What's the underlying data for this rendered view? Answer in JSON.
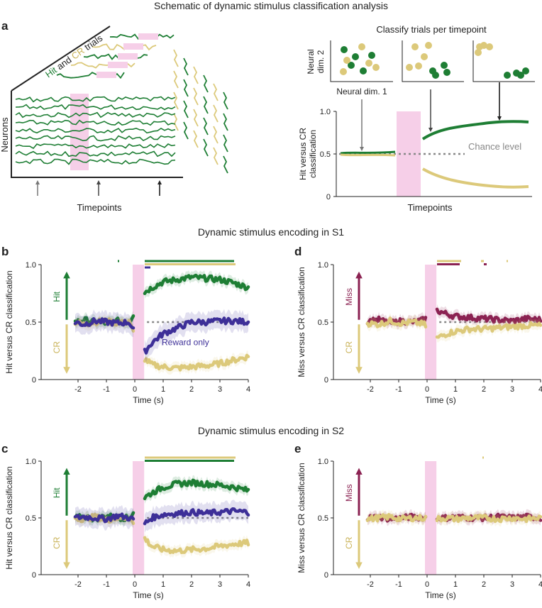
{
  "colors": {
    "hit": "#1e7e34",
    "cr": "#dcc97a",
    "miss": "#8b2252",
    "reward": "#3d2f98",
    "stim": "#f6cfe8",
    "chance": "#888888",
    "axis": "#222222"
  },
  "section_titles": {
    "schematic": "Schematic of dynamic stimulus classification analysis",
    "s1": "Dynamic stimulus encoding in S1",
    "s2": "Dynamic stimulus encoding in S2"
  },
  "panel_letters": {
    "a": "a",
    "b": "b",
    "c": "c",
    "d": "d",
    "e": "e"
  },
  "schematic": {
    "trials_label_hit": "Hit",
    "trials_label_and": " and ",
    "trials_label_cr": "CR",
    "trials_label_suffix": " trials",
    "neurons_label": "Neurons",
    "timepoints_label": "Timepoints",
    "classify_title": "Classify trials per timepoint",
    "neural_dim2_line1": "Neural",
    "neural_dim2_line2": "dim. 2",
    "neural_dim1": "Neural dim. 1",
    "ylabel_line1": "Hit versus CR",
    "ylabel_line2": "classification",
    "xlabel": "Timepoints",
    "chance_label": "Chance level",
    "yticks": [
      "0",
      "0.5",
      "1.0"
    ]
  },
  "chart_data": [
    {
      "panel": "b",
      "type": "line",
      "title": "Dynamic stimulus encoding in S1",
      "xlabel": "Time (s)",
      "ylabel": "Hit versus CR classification",
      "xlim": [
        -2.9,
        4
      ],
      "ylim": [
        0,
        1
      ],
      "xticks": [
        "-2",
        "-1",
        "0",
        "1",
        "2",
        "3",
        "4"
      ],
      "yticks": [
        "0",
        "0.5",
        "1.0"
      ],
      "stim_window": [
        0,
        0.33
      ],
      "chance": 0.5,
      "arrow_up_label": "Hit",
      "arrow_down_label": "CR",
      "annotation": "Reward only",
      "series": [
        {
          "name": "Hit",
          "x": [
            -2.1,
            -1.8,
            -1.4,
            -1,
            -0.6,
            -0.2,
            0.35,
            0.6,
            1,
            1.5,
            2,
            2.5,
            3,
            3.5,
            4
          ],
          "values": [
            0.5,
            0.52,
            0.5,
            0.49,
            0.51,
            0.5,
            0.76,
            0.8,
            0.85,
            0.87,
            0.89,
            0.88,
            0.87,
            0.84,
            0.8
          ]
        },
        {
          "name": "CR",
          "x": [
            -2.1,
            -1.8,
            -1.4,
            -1,
            -0.6,
            -0.2,
            0.35,
            0.6,
            1,
            1.5,
            2,
            2.5,
            3,
            3.5,
            4
          ],
          "values": [
            0.5,
            0.48,
            0.5,
            0.51,
            0.49,
            0.5,
            0.18,
            0.13,
            0.11,
            0.1,
            0.11,
            0.12,
            0.14,
            0.17,
            0.2
          ]
        },
        {
          "name": "Reward only",
          "x": [
            -2.1,
            -1.8,
            -1.4,
            -1,
            -0.6,
            -0.2,
            0.35,
            0.6,
            1,
            1.5,
            2,
            2.5,
            3,
            3.5,
            4
          ],
          "values": [
            0.5,
            0.48,
            0.51,
            0.5,
            0.49,
            0.5,
            0.24,
            0.32,
            0.4,
            0.45,
            0.5,
            0.5,
            0.51,
            0.51,
            0.5
          ]
        }
      ],
      "sig_bars": [
        {
          "series": "Hit",
          "x0": 0.35,
          "x1": 3.5
        },
        {
          "series": "CR",
          "x0": 0.35,
          "x1": 3.55
        },
        {
          "series": "Reward only",
          "x0": 0.35,
          "x1": 0.55
        },
        {
          "series": "Hit",
          "x0": -0.6,
          "x1": -0.55
        }
      ]
    },
    {
      "panel": "d",
      "type": "line",
      "xlabel": "Time (s)",
      "ylabel": "Miss versus CR classification",
      "xlim": [
        -2.9,
        4
      ],
      "ylim": [
        0,
        1
      ],
      "xticks": [
        "-2",
        "-1",
        "0",
        "1",
        "2",
        "3",
        "4"
      ],
      "yticks": [
        "0",
        "0.5",
        "1.0"
      ],
      "stim_window": [
        0,
        0.33
      ],
      "chance": 0.5,
      "arrow_up_label": "Miss",
      "arrow_down_label": "CR",
      "series": [
        {
          "name": "Miss",
          "x": [
            -2.1,
            -1.7,
            -1.3,
            -0.9,
            -0.5,
            -0.1,
            0.35,
            0.7,
            1,
            1.5,
            2,
            2.5,
            3,
            3.5,
            4
          ],
          "values": [
            0.51,
            0.52,
            0.49,
            0.51,
            0.5,
            0.52,
            0.6,
            0.57,
            0.55,
            0.54,
            0.53,
            0.52,
            0.51,
            0.53,
            0.52
          ]
        },
        {
          "name": "CR",
          "x": [
            -2.1,
            -1.7,
            -1.3,
            -0.9,
            -0.5,
            -0.1,
            0.35,
            0.7,
            1,
            1.5,
            2,
            2.5,
            3,
            3.5,
            4
          ],
          "values": [
            0.49,
            0.48,
            0.51,
            0.49,
            0.5,
            0.48,
            0.36,
            0.4,
            0.42,
            0.44,
            0.44,
            0.45,
            0.46,
            0.47,
            0.47
          ]
        }
      ],
      "sig_bars": [
        {
          "series": "CR",
          "x0": 0.35,
          "x1": 1.2
        },
        {
          "series": "Miss",
          "x0": 0.35,
          "x1": 1.15
        },
        {
          "series": "CR",
          "x0": 1.9,
          "x1": 2.0
        },
        {
          "series": "Miss",
          "x0": 2.0,
          "x1": 2.1
        },
        {
          "series": "CR",
          "x0": 2.8,
          "x1": 2.85
        }
      ]
    },
    {
      "panel": "c",
      "type": "line",
      "title": "Dynamic stimulus encoding in S2",
      "xlabel": "Time (s)",
      "ylabel": "Hit versus CR classification",
      "xlim": [
        -2.9,
        4
      ],
      "ylim": [
        0,
        1
      ],
      "xticks": [
        "-2",
        "-1",
        "0",
        "1",
        "2",
        "3",
        "4"
      ],
      "yticks": [
        "0",
        "0.5",
        "1.0"
      ],
      "stim_window": [
        0,
        0.33
      ],
      "chance": 0.5,
      "arrow_up_label": "Hit",
      "arrow_down_label": "CR",
      "series": [
        {
          "name": "Hit",
          "x": [
            -2.1,
            -1.8,
            -1.4,
            -1,
            -0.6,
            -0.2,
            0.35,
            0.6,
            1,
            1.5,
            2,
            2.5,
            3,
            3.5,
            4
          ],
          "values": [
            0.5,
            0.51,
            0.49,
            0.52,
            0.5,
            0.5,
            0.68,
            0.72,
            0.77,
            0.8,
            0.81,
            0.8,
            0.79,
            0.77,
            0.74
          ]
        },
        {
          "name": "CR",
          "x": [
            -2.1,
            -1.8,
            -1.4,
            -1,
            -0.6,
            -0.2,
            0.35,
            0.6,
            1,
            1.5,
            2,
            2.5,
            3,
            3.5,
            4
          ],
          "values": [
            0.5,
            0.49,
            0.51,
            0.48,
            0.5,
            0.5,
            0.32,
            0.25,
            0.22,
            0.21,
            0.22,
            0.23,
            0.25,
            0.27,
            0.28
          ]
        },
        {
          "name": "Reward only",
          "x": [
            -2.1,
            -1.8,
            -1.4,
            -1,
            -0.6,
            -0.2,
            0.35,
            0.6,
            1,
            1.5,
            2,
            2.5,
            3,
            3.5,
            4
          ],
          "values": [
            0.5,
            0.51,
            0.5,
            0.49,
            0.52,
            0.5,
            0.45,
            0.5,
            0.53,
            0.54,
            0.55,
            0.54,
            0.55,
            0.56,
            0.55
          ]
        }
      ],
      "sig_bars": [
        {
          "series": "CR",
          "x0": 0.35,
          "x1": 3.55
        },
        {
          "series": "Hit",
          "x0": 0.35,
          "x1": 3.5
        }
      ]
    },
    {
      "panel": "e",
      "type": "line",
      "xlabel": "Time (s)",
      "ylabel": "Miss versus CR classification",
      "xlim": [
        -2.9,
        4
      ],
      "ylim": [
        0,
        1
      ],
      "xticks": [
        "-2",
        "-1",
        "0",
        "1",
        "2",
        "3",
        "4"
      ],
      "yticks": [
        "0",
        "0.5",
        "1.0"
      ],
      "stim_window": [
        0,
        0.33
      ],
      "chance": 0.5,
      "arrow_up_label": "Miss",
      "arrow_down_label": "CR",
      "series": [
        {
          "name": "Miss",
          "x": [
            -2.1,
            -1.7,
            -1.3,
            -0.9,
            -0.5,
            -0.1,
            0.35,
            0.7,
            1,
            1.5,
            2,
            2.5,
            3,
            3.5,
            4
          ],
          "values": [
            0.5,
            0.51,
            0.49,
            0.5,
            0.51,
            0.5,
            0.5,
            0.5,
            0.51,
            0.5,
            0.5,
            0.51,
            0.5,
            0.51,
            0.5
          ]
        },
        {
          "name": "CR",
          "x": [
            -2.1,
            -1.7,
            -1.3,
            -0.9,
            -0.5,
            -0.1,
            0.35,
            0.7,
            1,
            1.5,
            2,
            2.5,
            3,
            3.5,
            4
          ],
          "values": [
            0.49,
            0.5,
            0.51,
            0.49,
            0.5,
            0.5,
            0.49,
            0.5,
            0.49,
            0.5,
            0.5,
            0.49,
            0.5,
            0.49,
            0.5
          ]
        }
      ],
      "sig_bars": [
        {
          "series": "CR",
          "x0": 1.95,
          "x1": 2.0
        }
      ]
    }
  ]
}
